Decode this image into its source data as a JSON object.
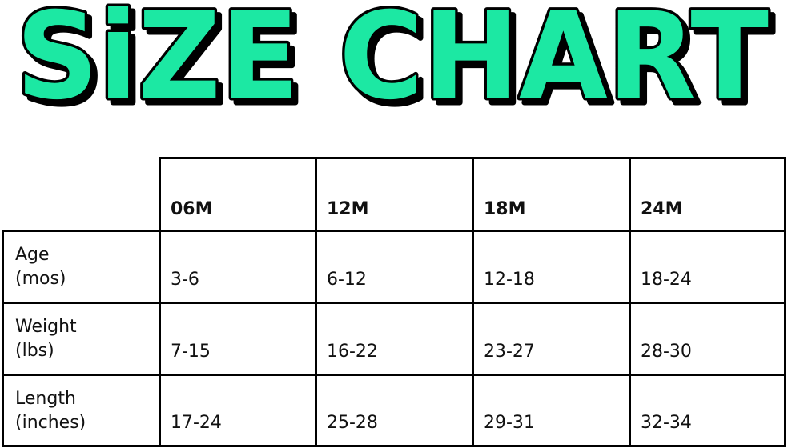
{
  "title": "SiZE CHART",
  "colors": {
    "title_fill": "#1ee8a3",
    "title_outline": "#000000",
    "grid": "#000000"
  },
  "table": {
    "columns": [
      "06M",
      "12M",
      "18M",
      "24M"
    ],
    "rows": [
      {
        "label_line1": "Age",
        "label_line2": "(mos)",
        "values": [
          "3-6",
          "6-12",
          "12-18",
          "18-24"
        ]
      },
      {
        "label_line1": "Weight",
        "label_line2": "(lbs)",
        "values": [
          "7-15",
          "16-22",
          "23-27",
          "28-30"
        ]
      },
      {
        "label_line1": "Length",
        "label_line2": "(inches)",
        "values": [
          "17-24",
          "25-28",
          "29-31",
          "32-34"
        ]
      }
    ]
  }
}
